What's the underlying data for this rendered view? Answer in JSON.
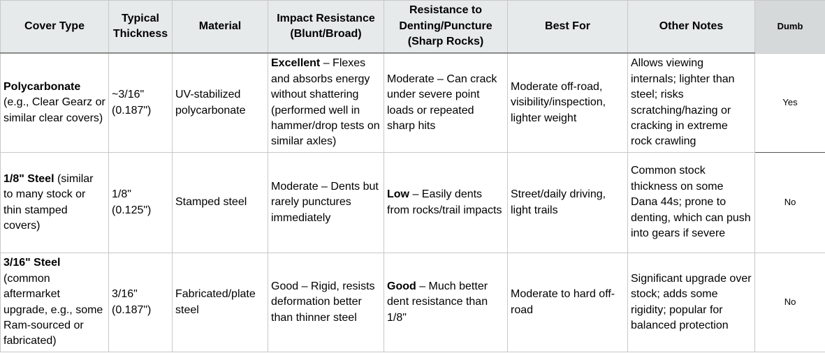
{
  "headers": {
    "cover_type": "Cover Type",
    "thickness": "Typical Thickness",
    "material": "Material",
    "impact": "Impact Resistance (Blunt/Broad)",
    "denting": "Resistance to Denting/Puncture (Sharp Rocks)",
    "best_for": "Best For",
    "notes": "Other Notes",
    "dumb": "Dumb"
  },
  "rows": [
    {
      "cover_bold": "Polycarbonate",
      "cover_rest": " (e.g., Clear Gearz or similar clear covers)",
      "thickness": "~3/16\" (0.187\")",
      "material": "UV-stabilized polycarbonate",
      "impact_bold": "Excellent",
      "impact_rest": " – Flexes and absorbs energy without shattering (performed well in hammer/drop tests on similar axles)",
      "denting_bold": "",
      "denting_rest": "Moderate – Can crack under severe point loads or repeated sharp hits",
      "best_for": "Moderate off-road, visibility/inspection, lighter weight",
      "notes": "Allows viewing internals; lighter than steel; risks scratching/hazing or cracking in extreme rock crawling",
      "dumb": "Yes"
    },
    {
      "cover_bold": "1/8\" Steel",
      "cover_rest": " (similar to many stock or thin stamped covers)",
      "thickness": "1/8\" (0.125\")",
      "material": "Stamped steel",
      "impact_bold": "",
      "impact_rest": "Moderate – Dents but rarely punctures immediately",
      "denting_bold": "Low",
      "denting_rest": " – Easily dents from rocks/trail impacts",
      "best_for": "Street/daily driving, light trails",
      "notes": "Common stock thickness on some Dana 44s; prone to denting, which can push into gears if severe",
      "dumb": "No"
    },
    {
      "cover_bold": "3/16\" Steel",
      "cover_rest": " (common aftermarket upgrade, e.g., some Ram-sourced or fabricated)",
      "thickness": "3/16\" (0.187\")",
      "material": "Fabricated/plate steel",
      "impact_bold": "",
      "impact_rest": "Good – Rigid, resists deformation better than thinner steel",
      "denting_bold": "Good",
      "denting_rest": " – Much better dent resistance than 1/8\"",
      "best_for": "Moderate to hard off-road",
      "notes": "Significant upgrade over stock; adds some rigidity; popular for balanced protection",
      "dumb": "No"
    }
  ]
}
